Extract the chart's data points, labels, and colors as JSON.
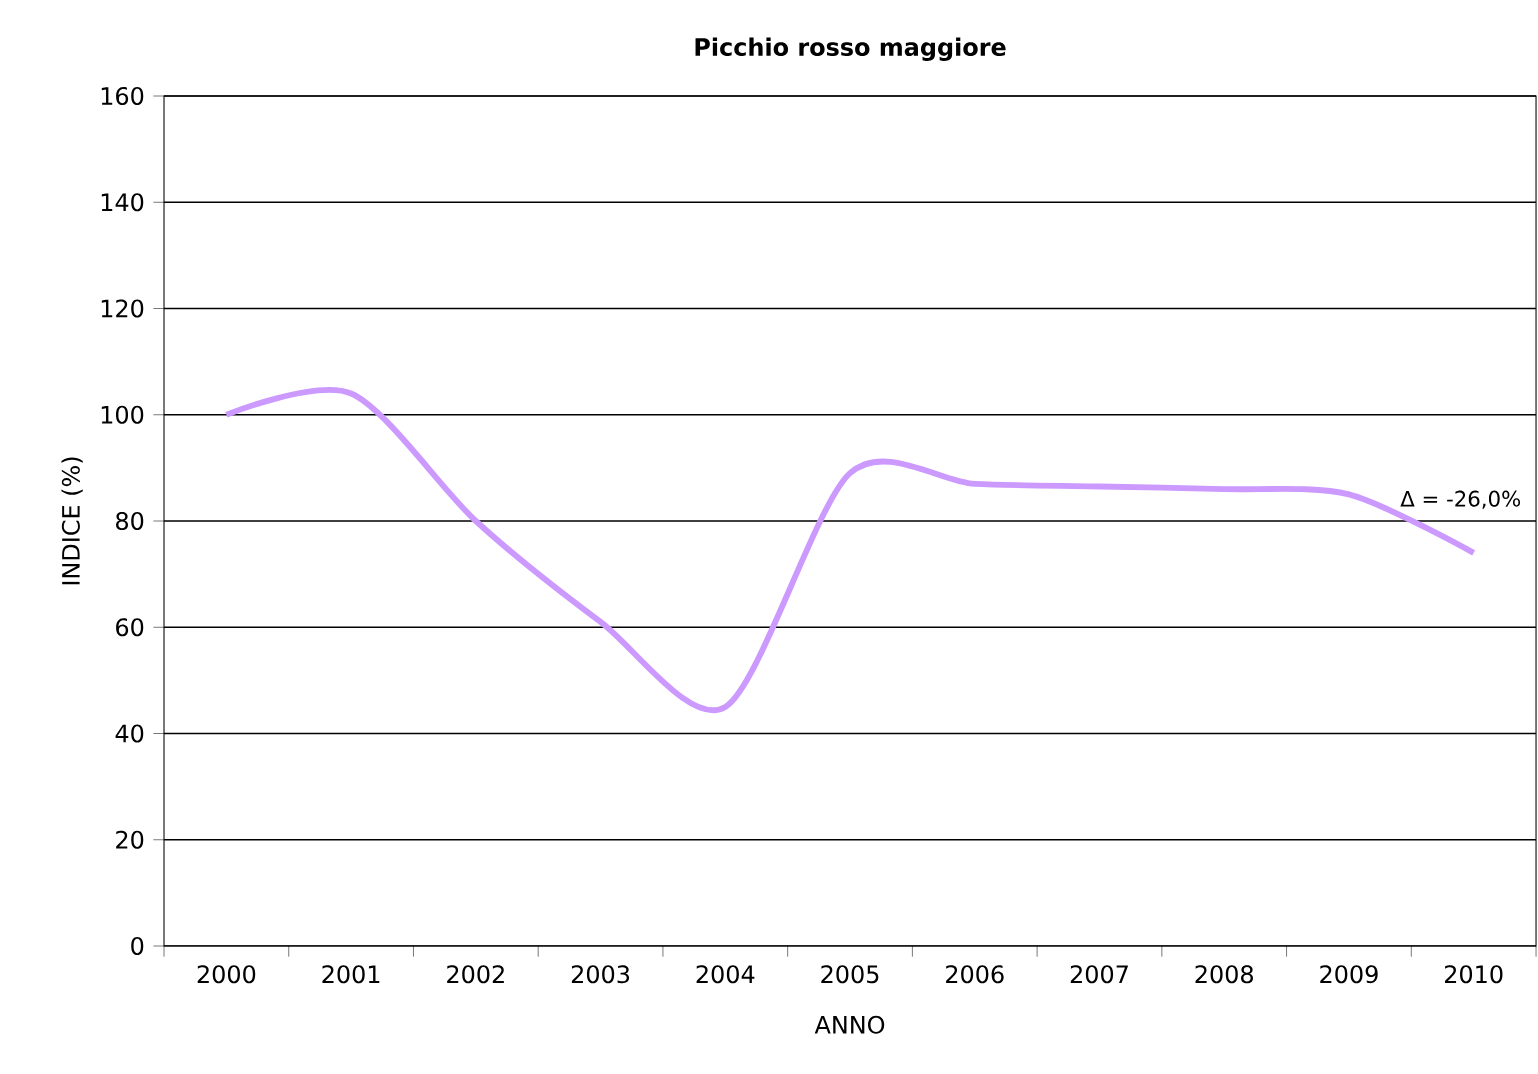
{
  "chart_data": {
    "type": "line",
    "title": "Picchio rosso maggiore",
    "xlabel": "ANNO",
    "ylabel": "INDICE (%)",
    "categories": [
      "2000",
      "2001",
      "2002",
      "2003",
      "2004",
      "2005",
      "2006",
      "2007",
      "2008",
      "2009",
      "2010"
    ],
    "series": [
      {
        "color": "#cc99ff",
        "values": [
          100,
          104,
          80,
          61,
          45,
          89,
          87,
          86.5,
          86,
          85,
          74
        ]
      }
    ],
    "ylim": [
      0,
      160
    ],
    "yticks": [
      0,
      20,
      40,
      60,
      80,
      100,
      120,
      140,
      160
    ],
    "grid": "y",
    "legend": false,
    "marker": "none",
    "line_style": "solid",
    "annotations": [
      {
        "text": "Δ = -26,0%",
        "x": "2010",
        "y": 74
      }
    ]
  }
}
